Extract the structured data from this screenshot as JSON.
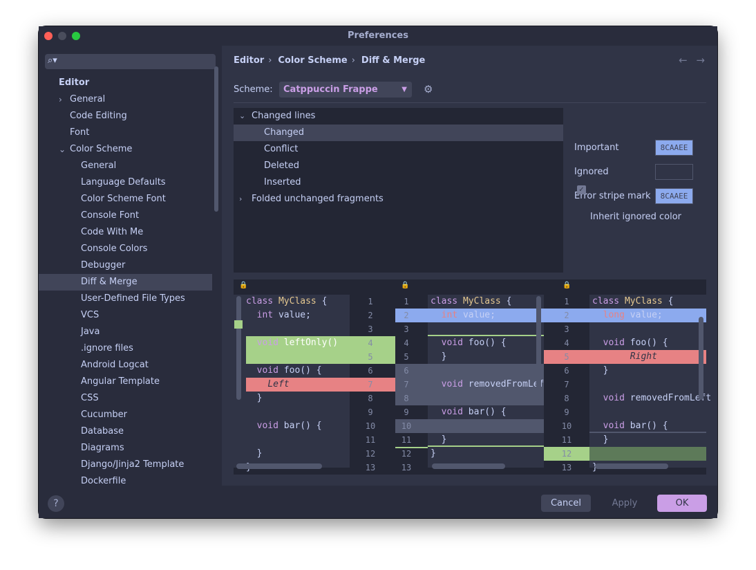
{
  "window": {
    "title": "Preferences"
  },
  "sidebar": {
    "search_placeholder": "",
    "items": [
      {
        "label": "Editor",
        "level": 0
      },
      {
        "label": "General",
        "level": 1,
        "chevron": "right"
      },
      {
        "label": "Code Editing",
        "level": 1
      },
      {
        "label": "Font",
        "level": 1
      },
      {
        "label": "Color Scheme",
        "level": 1,
        "chevron": "down"
      },
      {
        "label": "General",
        "level": 2
      },
      {
        "label": "Language Defaults",
        "level": 2
      },
      {
        "label": "Color Scheme Font",
        "level": 2
      },
      {
        "label": "Console Font",
        "level": 2
      },
      {
        "label": "Code With Me",
        "level": 2
      },
      {
        "label": "Console Colors",
        "level": 2
      },
      {
        "label": "Debugger",
        "level": 2
      },
      {
        "label": "Diff & Merge",
        "level": 2,
        "selected": true
      },
      {
        "label": "User-Defined File Types",
        "level": 2
      },
      {
        "label": "VCS",
        "level": 2
      },
      {
        "label": "Java",
        "level": 2
      },
      {
        "label": ".ignore files",
        "level": 2
      },
      {
        "label": "Android Logcat",
        "level": 2
      },
      {
        "label": "Angular Template",
        "level": 2
      },
      {
        "label": "CSS",
        "level": 2
      },
      {
        "label": "Cucumber",
        "level": 2
      },
      {
        "label": "Database",
        "level": 2
      },
      {
        "label": "Diagrams",
        "level": 2
      },
      {
        "label": "Django/Jinja2 Template",
        "level": 2
      },
      {
        "label": "Dockerfile",
        "level": 2
      }
    ]
  },
  "breadcrumb": {
    "items": [
      "Editor",
      "Color Scheme",
      "Diff & Merge"
    ],
    "separator": "›"
  },
  "nav": {
    "back": "←",
    "forward": "→"
  },
  "scheme": {
    "label": "Scheme:",
    "value": "Catppuccin Frappe"
  },
  "options_tree": [
    {
      "label": "Changed lines",
      "level": 0,
      "chevron": "down"
    },
    {
      "label": "Changed",
      "level": 1,
      "selected": true
    },
    {
      "label": "Conflict",
      "level": 1
    },
    {
      "label": "Deleted",
      "level": 1
    },
    {
      "label": "Inserted",
      "level": 1
    },
    {
      "label": "Folded unchanged fragments",
      "level": 0,
      "chevron": "right"
    }
  ],
  "properties": {
    "important_label": "Important",
    "important_value": "8CAAEE",
    "ignored_label": "Ignored",
    "ignored_value": "",
    "error_stripe_label": "Error stripe mark",
    "error_stripe_value": "8CAAEE",
    "inherit_label": "Inherit ignored color",
    "inherit_checked": true
  },
  "colors": {
    "changed": "#8caaee",
    "inserted": "#a6d189",
    "deleted": "#e78284",
    "conflict": "#51576d",
    "accent": "#ca9ee6"
  },
  "diff": {
    "left_numbers": [
      "1",
      "2",
      "3",
      "4",
      "5",
      "6",
      "7",
      "8",
      "9",
      "10",
      "11",
      "12",
      "13"
    ],
    "middle_numbers": [
      "1",
      "2",
      "3",
      "4",
      "5",
      "6",
      "7",
      "8",
      "9",
      "10",
      "11",
      "12",
      "13"
    ],
    "right_numbers": [
      "1",
      "2",
      "3",
      "4",
      "5",
      "6",
      "7",
      "8",
      "9",
      "10",
      "11",
      "12",
      "13"
    ]
  },
  "buttons": {
    "help": "?",
    "cancel": "Cancel",
    "apply": "Apply",
    "ok": "OK"
  }
}
